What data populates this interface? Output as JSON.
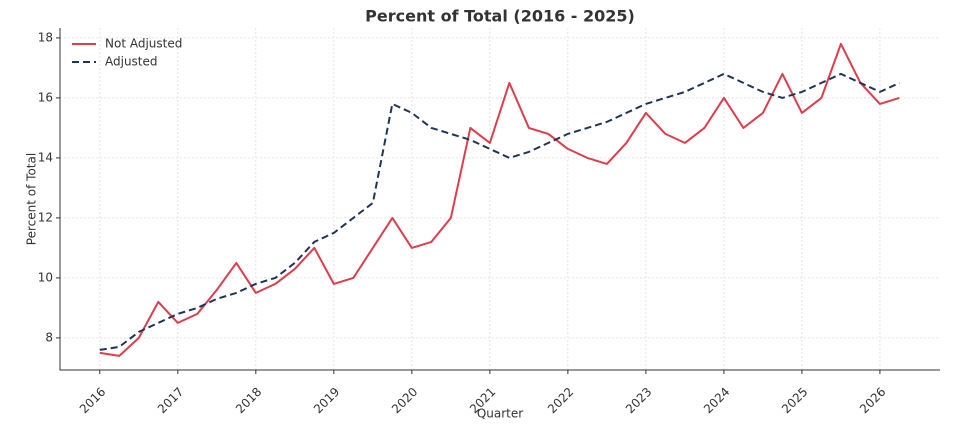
{
  "chart_data": {
    "type": "line",
    "title": "Percent of Total (2016 - 2025)",
    "x_label": "Quarter",
    "y_label": "Percent of Total",
    "x": [
      2016,
      2016.25,
      2016.5,
      2016.75,
      2017,
      2017.25,
      2017.5,
      2017.75,
      2018,
      2018.25,
      2018.5,
      2018.75,
      2019,
      2019.25,
      2019.5,
      2019.75,
      2020,
      2020.25,
      2020.5,
      2020.75,
      2021,
      2021.25,
      2021.5,
      2021.75,
      2022,
      2022.25,
      2022.5,
      2022.75,
      2023,
      2023.25,
      2023.5,
      2023.75,
      2024,
      2024.25,
      2024.5,
      2024.75,
      2025,
      2025.25,
      2025.5,
      2025.75,
      2026,
      2026.25
    ],
    "series": [
      {
        "name": "Not Adjusted",
        "color": "#e03c4c",
        "dash": false,
        "values": [
          7.5,
          7.4,
          8.0,
          9.2,
          8.5,
          8.8,
          9.6,
          10.5,
          9.5,
          9.8,
          10.3,
          11.0,
          9.8,
          10.0,
          11.0,
          12.0,
          11.0,
          11.2,
          12.0,
          15.0,
          14.5,
          16.5,
          15.0,
          14.8,
          14.3,
          14.0,
          13.8,
          14.5,
          15.5,
          14.8,
          14.5,
          15.0,
          16.0,
          15.0,
          15.5,
          16.8,
          15.5,
          16.0,
          17.8,
          16.5,
          15.8,
          16.0
        ]
      },
      {
        "name": "Adjusted",
        "color": "#1f3556",
        "dash": true,
        "values": [
          7.6,
          7.7,
          8.2,
          8.5,
          8.8,
          9.0,
          9.3,
          9.5,
          9.8,
          10.0,
          10.5,
          11.2,
          11.5,
          12.0,
          12.5,
          15.8,
          15.5,
          15.0,
          14.8,
          14.6,
          14.3,
          14.0,
          14.2,
          14.5,
          14.8,
          15.0,
          15.2,
          15.5,
          15.8,
          16.0,
          16.2,
          16.5,
          16.8,
          16.5,
          16.2,
          16.0,
          16.2,
          16.5,
          16.8,
          16.5,
          16.2,
          16.5
        ]
      }
    ],
    "xlim": [
      2015.49,
      2026.77
    ],
    "xticks": [
      2016,
      2017,
      2018,
      2019,
      2020,
      2021,
      2022,
      2023,
      2024,
      2025,
      2026
    ],
    "ylim": [
      6.93,
      18.33
    ],
    "yticks": [
      8,
      10,
      12,
      14,
      16,
      18
    ],
    "grid": true,
    "legend": "upper-left"
  }
}
